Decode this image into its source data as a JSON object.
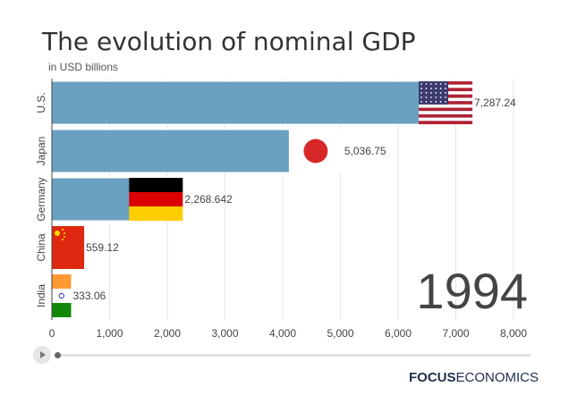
{
  "header": {
    "title": "The evolution of nominal GDP",
    "subtitle": "in USD billions"
  },
  "chart_data": {
    "type": "bar",
    "orientation": "horizontal",
    "title": "The evolution of nominal GDP",
    "subtitle": "in USD billions",
    "frame_label": "1994",
    "categories": [
      "U.S.",
      "Japan",
      "Germany",
      "China",
      "India"
    ],
    "values": [
      7287.24,
      5036.75,
      2268.642,
      559.12,
      333.06
    ],
    "value_labels": [
      "7,287.24",
      "5,036.75",
      "2,268.642",
      "559.12",
      "333.06"
    ],
    "xlim": [
      0,
      8000
    ],
    "x_ticks": [
      0,
      1000,
      2000,
      3000,
      4000,
      5000,
      6000,
      7000,
      8000
    ],
    "x_tick_labels": [
      "0",
      "1,000",
      "2,000",
      "3,000",
      "4,000",
      "5,000",
      "6,000",
      "7,000",
      "8,000"
    ],
    "grid": true,
    "bar_color": "#6aa0c0",
    "flag_icons": [
      "us-flag-icon",
      "japan-flag-icon",
      "germany-flag-icon",
      "china-flag-icon",
      "india-flag-icon"
    ]
  },
  "controls": {
    "play_icon": "play-icon",
    "slider_position": 0
  },
  "logo": {
    "bold": "FOCUS",
    "light": "ECONOMICS"
  },
  "colors": {
    "bar": "#6aa0c0",
    "grid": "#e6e6e6",
    "text": "#444444",
    "logo": "#1f2f4a"
  }
}
